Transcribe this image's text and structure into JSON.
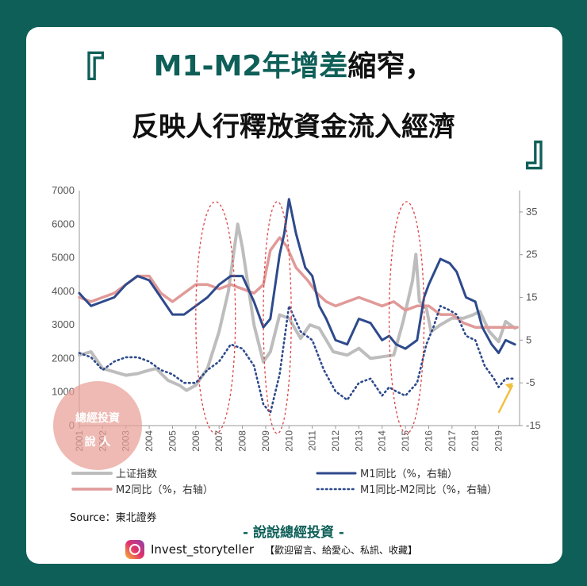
{
  "title_line1_parts": [
    "M1-M2",
    "年增差",
    "縮窄，"
  ],
  "title_line2": "反映人行釋放資金流入經濟",
  "quote_open": "『",
  "quote_close": "』",
  "source": "Source：東北證券",
  "brand": "- 說說總經投資 -",
  "handle": "Invest_storyteller",
  "cta": "【歡迎留言、給愛心、私訊、收藏】",
  "stamp_line1": "總經投資",
  "stamp_line2": "說 人",
  "colors": {
    "accent": "#0e5f58",
    "index": "#bdbdbd",
    "m1": "#2e4a8c",
    "m2": "#e09a98",
    "diff": "#2e4a8c",
    "oval": "#d44"
  },
  "icons": [
    "instagram-icon",
    "arrow-icon"
  ],
  "chart_data": {
    "type": "line",
    "x_range": [
      2001,
      2019.9
    ],
    "x_ticks": [
      "2001",
      "2002",
      "2003",
      "2004",
      "2005",
      "2006",
      "2007",
      "2008",
      "2009",
      "2010",
      "2011",
      "2012",
      "2013",
      "2014",
      "2015",
      "2016",
      "2017",
      "2018",
      "2019"
    ],
    "y_left": {
      "range": [
        0,
        7000
      ],
      "ticks": [
        "0",
        "1000",
        "2000",
        "3000",
        "4000",
        "5000",
        "6000",
        "7000"
      ]
    },
    "y_right": {
      "range": [
        -15,
        40
      ],
      "ticks": [
        "-15",
        "-5",
        "5",
        "15",
        "25",
        "35"
      ]
    },
    "legend": [
      "上证指数",
      "M1同比（%，右轴）",
      "M2同比（%，右轴）",
      "M1同比-M2同比（%，右轴）"
    ],
    "series": [
      {
        "name": "上证指数",
        "axis": "left",
        "style": "solid-gray",
        "points": [
          [
            2001.0,
            2100
          ],
          [
            2001.5,
            2200
          ],
          [
            2002.0,
            1700
          ],
          [
            2002.5,
            1600
          ],
          [
            2003.0,
            1500
          ],
          [
            2003.5,
            1550
          ],
          [
            2004.0,
            1650
          ],
          [
            2004.3,
            1700
          ],
          [
            2004.8,
            1350
          ],
          [
            2005.3,
            1200
          ],
          [
            2005.6,
            1050
          ],
          [
            2006.0,
            1200
          ],
          [
            2006.5,
            1700
          ],
          [
            2007.0,
            2800
          ],
          [
            2007.4,
            4000
          ],
          [
            2007.8,
            6000
          ],
          [
            2008.0,
            5300
          ],
          [
            2008.5,
            3000
          ],
          [
            2008.9,
            1900
          ],
          [
            2009.2,
            2200
          ],
          [
            2009.6,
            3300
          ],
          [
            2010.0,
            3200
          ],
          [
            2010.5,
            2600
          ],
          [
            2010.9,
            3000
          ],
          [
            2011.3,
            2900
          ],
          [
            2011.9,
            2200
          ],
          [
            2012.5,
            2100
          ],
          [
            2013.0,
            2300
          ],
          [
            2013.5,
            2000
          ],
          [
            2014.0,
            2050
          ],
          [
            2014.5,
            2100
          ],
          [
            2014.9,
            3100
          ],
          [
            2015.3,
            4300
          ],
          [
            2015.45,
            5100
          ],
          [
            2015.6,
            3700
          ],
          [
            2015.9,
            3500
          ],
          [
            2016.1,
            2800
          ],
          [
            2016.5,
            3000
          ],
          [
            2017.0,
            3200
          ],
          [
            2017.5,
            3200
          ],
          [
            2017.9,
            3300
          ],
          [
            2018.2,
            3400
          ],
          [
            2018.6,
            2800
          ],
          [
            2019.0,
            2500
          ],
          [
            2019.3,
            3100
          ],
          [
            2019.7,
            2900
          ]
        ]
      },
      {
        "name": "M1同比（%，右轴）",
        "axis": "right",
        "style": "solid-blue",
        "points": [
          [
            2001.0,
            16
          ],
          [
            2001.5,
            13
          ],
          [
            2002.0,
            14
          ],
          [
            2002.5,
            15
          ],
          [
            2003.0,
            18
          ],
          [
            2003.5,
            20
          ],
          [
            2004.0,
            19
          ],
          [
            2004.5,
            15
          ],
          [
            2005.0,
            11
          ],
          [
            2005.5,
            11
          ],
          [
            2006.0,
            13
          ],
          [
            2006.5,
            15
          ],
          [
            2007.0,
            18
          ],
          [
            2007.5,
            20
          ],
          [
            2008.0,
            20
          ],
          [
            2008.5,
            14
          ],
          [
            2008.9,
            8
          ],
          [
            2009.2,
            10
          ],
          [
            2009.6,
            25
          ],
          [
            2009.8,
            30
          ],
          [
            2010.0,
            38
          ],
          [
            2010.3,
            30
          ],
          [
            2010.7,
            22
          ],
          [
            2011.0,
            20
          ],
          [
            2011.3,
            13
          ],
          [
            2011.6,
            10
          ],
          [
            2012.0,
            5
          ],
          [
            2012.5,
            4
          ],
          [
            2013.0,
            10
          ],
          [
            2013.5,
            9
          ],
          [
            2014.0,
            5
          ],
          [
            2014.3,
            6
          ],
          [
            2014.6,
            4
          ],
          [
            2015.0,
            3
          ],
          [
            2015.5,
            5
          ],
          [
            2015.8,
            15
          ],
          [
            2016.0,
            18
          ],
          [
            2016.5,
            24
          ],
          [
            2016.9,
            23
          ],
          [
            2017.2,
            21
          ],
          [
            2017.6,
            15
          ],
          [
            2018.0,
            14
          ],
          [
            2018.3,
            8
          ],
          [
            2018.7,
            4
          ],
          [
            2019.0,
            2
          ],
          [
            2019.3,
            5
          ],
          [
            2019.7,
            4
          ]
        ]
      },
      {
        "name": "M2同比（%，右轴）",
        "axis": "right",
        "style": "solid-pink",
        "points": [
          [
            2001.0,
            15
          ],
          [
            2001.5,
            14
          ],
          [
            2002.0,
            15
          ],
          [
            2002.5,
            16
          ],
          [
            2003.0,
            18
          ],
          [
            2003.5,
            20
          ],
          [
            2004.0,
            20
          ],
          [
            2004.5,
            16
          ],
          [
            2005.0,
            14
          ],
          [
            2005.5,
            16
          ],
          [
            2006.0,
            18
          ],
          [
            2006.5,
            18
          ],
          [
            2007.0,
            17
          ],
          [
            2007.5,
            18
          ],
          [
            2008.0,
            17
          ],
          [
            2008.5,
            16
          ],
          [
            2008.9,
            18
          ],
          [
            2009.2,
            26
          ],
          [
            2009.6,
            29
          ],
          [
            2009.9,
            27
          ],
          [
            2010.3,
            22
          ],
          [
            2010.8,
            19
          ],
          [
            2011.2,
            16
          ],
          [
            2011.6,
            14
          ],
          [
            2012.0,
            13
          ],
          [
            2012.5,
            14
          ],
          [
            2013.0,
            15
          ],
          [
            2013.5,
            14
          ],
          [
            2014.0,
            13
          ],
          [
            2014.5,
            14
          ],
          [
            2015.0,
            12
          ],
          [
            2015.5,
            13
          ],
          [
            2016.0,
            13
          ],
          [
            2016.5,
            11
          ],
          [
            2017.0,
            11
          ],
          [
            2017.5,
            9
          ],
          [
            2018.0,
            8
          ],
          [
            2018.5,
            8
          ],
          [
            2019.0,
            8
          ],
          [
            2019.5,
            8
          ],
          [
            2019.8,
            8
          ]
        ]
      },
      {
        "name": "M1同比-M2同比（%，右轴）",
        "axis": "right",
        "style": "dotted-blue",
        "points": [
          [
            2001.0,
            2
          ],
          [
            2001.5,
            1
          ],
          [
            2002.0,
            -2
          ],
          [
            2002.5,
            0
          ],
          [
            2003.0,
            1
          ],
          [
            2003.5,
            1
          ],
          [
            2004.0,
            0
          ],
          [
            2004.5,
            -2
          ],
          [
            2005.0,
            -3
          ],
          [
            2005.5,
            -5
          ],
          [
            2006.0,
            -5
          ],
          [
            2006.5,
            -2
          ],
          [
            2007.0,
            0
          ],
          [
            2007.5,
            4
          ],
          [
            2008.0,
            3
          ],
          [
            2008.5,
            -1
          ],
          [
            2008.9,
            -10
          ],
          [
            2009.2,
            -12
          ],
          [
            2009.6,
            -3
          ],
          [
            2010.0,
            13
          ],
          [
            2010.5,
            7
          ],
          [
            2011.0,
            5
          ],
          [
            2011.5,
            -2
          ],
          [
            2012.0,
            -7
          ],
          [
            2012.5,
            -9
          ],
          [
            2013.0,
            -5
          ],
          [
            2013.5,
            -4
          ],
          [
            2014.0,
            -8
          ],
          [
            2014.3,
            -6
          ],
          [
            2014.6,
            -7
          ],
          [
            2015.0,
            -8
          ],
          [
            2015.5,
            -5
          ],
          [
            2015.9,
            4
          ],
          [
            2016.2,
            8
          ],
          [
            2016.5,
            13
          ],
          [
            2016.9,
            12
          ],
          [
            2017.2,
            11
          ],
          [
            2017.6,
            6
          ],
          [
            2018.0,
            5
          ],
          [
            2018.4,
            -1
          ],
          [
            2018.8,
            -4
          ],
          [
            2019.0,
            -6
          ],
          [
            2019.3,
            -4
          ],
          [
            2019.7,
            -4
          ]
        ]
      }
    ],
    "highlights": [
      [
        2006.0,
        2007.7
      ],
      [
        2008.9,
        2010.1
      ],
      [
        2014.3,
        2015.8
      ]
    ]
  }
}
